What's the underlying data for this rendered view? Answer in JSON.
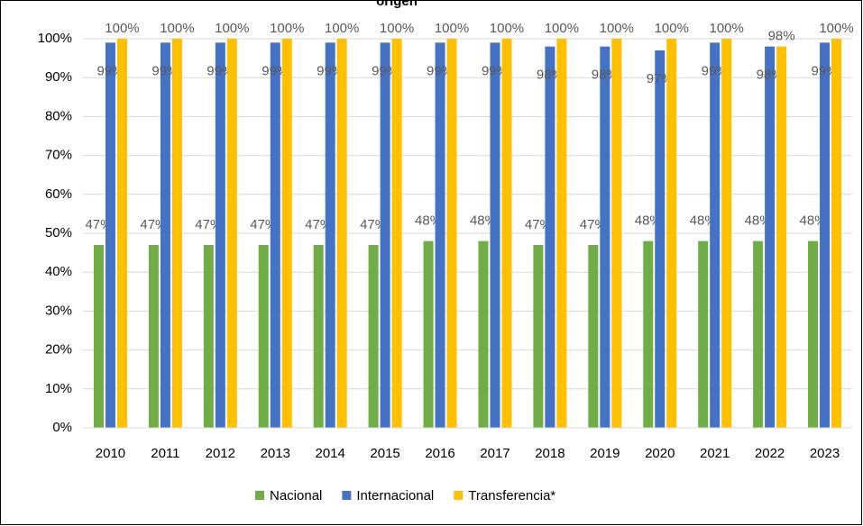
{
  "chart_data": {
    "type": "bar",
    "title": "origen",
    "categories": [
      "2010",
      "2011",
      "2012",
      "2013",
      "2014",
      "2015",
      "2016",
      "2017",
      "2018",
      "2019",
      "2020",
      "2021",
      "2022",
      "2023"
    ],
    "series": [
      {
        "name": "Nacional",
        "color": "#70ad47",
        "values": [
          47,
          47,
          47,
          47,
          47,
          47,
          48,
          48,
          47,
          47,
          48,
          48,
          48,
          48
        ],
        "value_labels": [
          "47%",
          "47%",
          "47%",
          "47%",
          "47%",
          "47%",
          "48%",
          "48%",
          "47%",
          "47%",
          "48%",
          "48%",
          "48%",
          "48%"
        ]
      },
      {
        "name": "Internacional",
        "color": "#4472c4",
        "values": [
          99,
          99,
          99,
          99,
          99,
          99,
          99,
          99,
          98,
          98,
          97,
          99,
          98,
          99
        ],
        "value_labels": [
          "99%",
          "99%",
          "99%",
          "99%",
          "99%",
          "99%",
          "99%",
          "99%",
          "98%",
          "98%",
          "97%",
          "99%",
          "98%",
          "99%"
        ]
      },
      {
        "name": "Transferencia*",
        "color": "#ffc000",
        "values": [
          100,
          100,
          100,
          100,
          100,
          100,
          100,
          100,
          100,
          100,
          100,
          100,
          98,
          100
        ],
        "value_labels": [
          "100%",
          "100%",
          "100%",
          "100%",
          "100%",
          "100%",
          "100%",
          "100%",
          "100%",
          "100%",
          "100%",
          "100%",
          "98%",
          "100%"
        ]
      }
    ],
    "ylim": [
      0,
      100
    ],
    "yticks": [
      {
        "value": 0,
        "label": "0%"
      },
      {
        "value": 10,
        "label": "10%"
      },
      {
        "value": 20,
        "label": "20%"
      },
      {
        "value": 30,
        "label": "30%"
      },
      {
        "value": 40,
        "label": "40%"
      },
      {
        "value": 50,
        "label": "50%"
      },
      {
        "value": 60,
        "label": "60%"
      },
      {
        "value": 70,
        "label": "70%"
      },
      {
        "value": 80,
        "label": "80%"
      },
      {
        "value": 90,
        "label": "90%"
      },
      {
        "value": 100,
        "label": "100%"
      }
    ],
    "grid": true,
    "legend": "bottom"
  }
}
